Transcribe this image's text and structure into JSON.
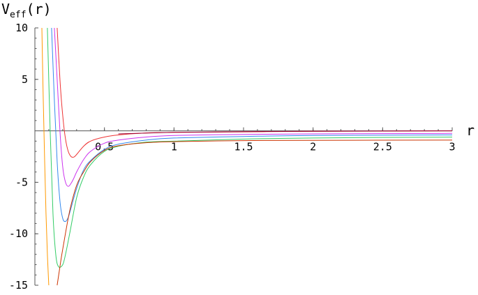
{
  "chart_data": {
    "type": "line",
    "xlabel": "r",
    "ylabel_main": "V",
    "ylabel_sub": "eff",
    "ylabel_arg": "(r)",
    "xlim": [
      0,
      3
    ],
    "ylim": [
      -15,
      10
    ],
    "x_ticks": [
      0.5,
      1,
      1.5,
      2,
      2.5,
      3
    ],
    "x_tick_labels": [
      "0.5",
      "1",
      "1.5",
      "2",
      "2.5",
      "3"
    ],
    "y_ticks": [
      10,
      5,
      -5,
      -10,
      -15
    ],
    "y_tick_labels": [
      "10",
      "5",
      "-5",
      "-10",
      "-15"
    ],
    "grid": false,
    "series": [
      {
        "color": "#ff9900",
        "x": [
          0.05,
          0.06,
          0.07,
          0.08,
          0.09,
          0.1
        ],
        "y": [
          10,
          3,
          -3,
          -8,
          -12,
          -15
        ]
      },
      {
        "color": "#33cc66",
        "x": [
          0.09,
          0.11,
          0.13,
          0.15,
          0.17,
          0.2,
          0.22,
          0.25,
          0.3,
          0.35,
          0.4,
          0.5,
          0.6,
          0.8,
          1.0,
          1.5,
          2.0,
          3.0
        ],
        "y": [
          10,
          0,
          -8,
          -12,
          -13.2,
          -13.0,
          -12.0,
          -10.0,
          -6.5,
          -4.5,
          -3.3,
          -2.0,
          -1.5,
          -1.1,
          -1.0,
          -0.8,
          -0.7,
          -0.6
        ]
      },
      {
        "color": "#3388ee",
        "x": [
          0.12,
          0.14,
          0.16,
          0.18,
          0.2,
          0.22,
          0.24,
          0.26,
          0.3,
          0.35,
          0.4,
          0.5,
          0.6,
          0.8,
          1.0,
          1.5,
          2.0,
          3.0
        ],
        "y": [
          10,
          3,
          -3,
          -6.8,
          -8.5,
          -8.8,
          -8.4,
          -7.5,
          -5.6,
          -3.8,
          -2.9,
          -1.8,
          -1.3,
          -0.9,
          -0.7,
          -0.55,
          -0.45,
          -0.4
        ]
      },
      {
        "color": "#cc33ee",
        "x": [
          0.14,
          0.16,
          0.18,
          0.2,
          0.22,
          0.24,
          0.26,
          0.28,
          0.3,
          0.35,
          0.4,
          0.5,
          0.6,
          0.8,
          1.0,
          1.5,
          2.0,
          3.0
        ],
        "y": [
          10,
          5,
          0,
          -3.5,
          -5.0,
          -5.4,
          -5.1,
          -4.6,
          -4.0,
          -2.8,
          -2.0,
          -1.2,
          -0.9,
          -0.6,
          -0.45,
          -0.35,
          -0.3,
          -0.25
        ]
      },
      {
        "color": "#ee3333",
        "x": [
          0.16,
          0.18,
          0.2,
          0.22,
          0.24,
          0.26,
          0.28,
          0.3,
          0.35,
          0.4,
          0.5,
          0.6,
          0.8,
          1.0,
          1.5,
          2.0,
          3.0
        ],
        "y": [
          10,
          5,
          1.5,
          -0.8,
          -2.0,
          -2.5,
          -2.55,
          -2.3,
          -1.5,
          -1.0,
          -0.6,
          -0.4,
          -0.2,
          -0.15,
          -0.1,
          -0.05,
          0.0
        ]
      },
      {
        "color": "#cc3300",
        "x": [
          0.16,
          0.18,
          0.2,
          0.25,
          0.3,
          0.35,
          0.4,
          0.5,
          0.6,
          0.8,
          1.0,
          1.5,
          2.0,
          3.0
        ],
        "y": [
          -15,
          -13.2,
          -11.5,
          -7.8,
          -5.3,
          -4.0,
          -3.0,
          -1.9,
          -1.45,
          -1.15,
          -1.05,
          -0.95,
          -0.92,
          -0.9
        ]
      },
      {
        "color": "#990033",
        "x": [
          0.6,
          1.0,
          1.5,
          2.0,
          3.0
        ],
        "y": [
          -0.3,
          -0.15,
          -0.08,
          -0.04,
          0.0
        ]
      }
    ]
  }
}
